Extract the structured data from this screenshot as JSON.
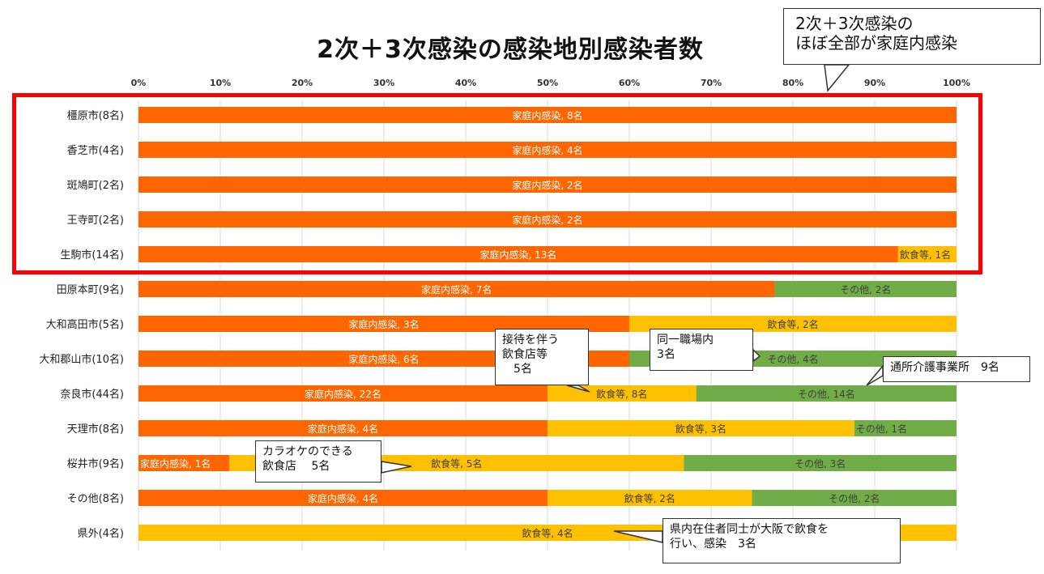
{
  "chart_data": {
    "type": "bar",
    "orientation": "horizontal",
    "stacked": "percent",
    "title": "2次＋3次感染の感染地別感染者数",
    "x_ticks": [
      "0%",
      "10%",
      "20%",
      "30%",
      "40%",
      "50%",
      "60%",
      "70%",
      "80%",
      "90%",
      "100%"
    ],
    "xlim": [
      0,
      100
    ],
    "grid": "vertical",
    "categories": [
      "橿原市(8名)",
      "香芝市(4名)",
      "斑鳩町(2名)",
      "王寺町(2名)",
      "生駒市(14名)",
      "田原本町(9名)",
      "大和高田市(5名)",
      "大和郡山市(10名)",
      "奈良市(44名)",
      "天理市(8名)",
      "桜井市(9名)",
      "その他(8名)",
      "県外(4名)"
    ],
    "series": [
      {
        "name": "家庭内感染",
        "color": "#ff6600",
        "values": [
          8,
          4,
          2,
          2,
          13,
          7,
          3,
          6,
          22,
          4,
          1,
          4,
          0
        ]
      },
      {
        "name": "飲食等",
        "color": "#ffc000",
        "values": [
          0,
          0,
          0,
          0,
          1,
          0,
          2,
          0,
          8,
          3,
          5,
          2,
          4
        ]
      },
      {
        "name": "その他",
        "color": "#70ad47",
        "values": [
          0,
          0,
          0,
          0,
          0,
          2,
          0,
          4,
          14,
          1,
          3,
          2,
          0
        ]
      }
    ],
    "segment_labels": [
      [
        "家庭内感染, 8名"
      ],
      [
        "家庭内感染, 4名"
      ],
      [
        "家庭内感染, 2名"
      ],
      [
        "家庭内感染, 2名"
      ],
      [
        "家庭内感染, 13名",
        "飲食等, 1名"
      ],
      [
        "家庭内感染, 7名",
        "その他, 2名"
      ],
      [
        "家庭内感染, 3名",
        "飲食等, 2名"
      ],
      [
        "家庭内感染, 6名",
        "その他, 4名"
      ],
      [
        "家庭内感染, 22名",
        "飲食等, 8名",
        "その他, 14名"
      ],
      [
        "家庭内感染, 4名",
        "飲食等, 3名",
        "その他, 1名"
      ],
      [
        "家庭内感染, 1名",
        "飲食等, 5名",
        "その他, 3名"
      ],
      [
        "家庭内感染, 4名",
        "飲食等, 2名",
        "その他, 2名"
      ],
      [
        "飲食等, 4名"
      ]
    ],
    "highlight_rows": [
      0,
      4
    ],
    "annotations": [
      {
        "id": "top",
        "text": "2次＋3次感染の\nほぼ全部が家庭内感染"
      },
      {
        "id": "settai",
        "text": "接待を伴う\n飲食店等\n　5名"
      },
      {
        "id": "shokuba",
        "text": "同一職場内\n3名"
      },
      {
        "id": "kaigo",
        "text": "通所介護事業所　9名"
      },
      {
        "id": "karaoke",
        "text": "カラオケのできる\n飲食店　 5名"
      },
      {
        "id": "osaka",
        "text": "県内在住者同士が大阪で飲食を\n行い、感染　3名"
      }
    ]
  }
}
